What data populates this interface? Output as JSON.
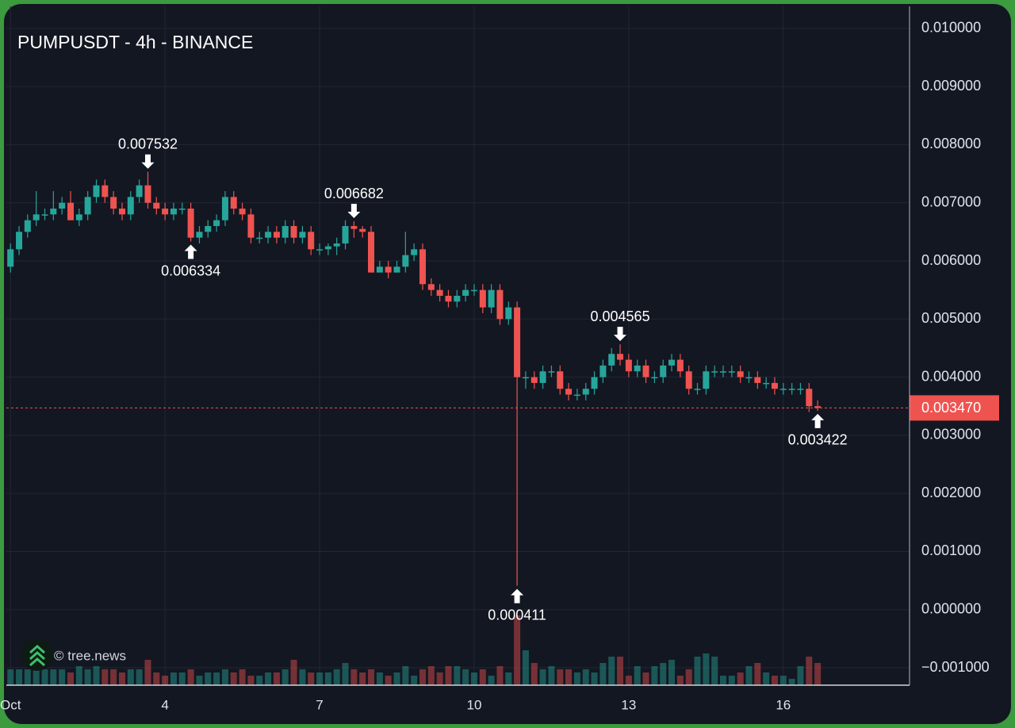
{
  "chart_data": {
    "type": "candlestick",
    "title": "PUMPUSDT - 4h - BINANCE",
    "watermark": "© tree.news",
    "up_color": "#26a69a",
    "down_color": "#ef5350",
    "grid": true,
    "xlim": [
      0.92,
      18.45
    ],
    "xticks": [
      {
        "value": 1,
        "label": "Oct"
      },
      4,
      7,
      10,
      13,
      16
    ],
    "ylim": [
      -0.0013,
      0.01038
    ],
    "yticks": [
      {
        "value": 0.01,
        "label": "0.010000"
      },
      {
        "value": 0.009,
        "label": "0.009000"
      },
      {
        "value": 0.008,
        "label": "0.008000"
      },
      {
        "value": 0.007,
        "label": "0.007000"
      },
      {
        "value": 0.006,
        "label": "0.006000"
      },
      {
        "value": 0.005,
        "label": "0.005000"
      },
      {
        "value": 0.004,
        "label": "0.004000"
      },
      {
        "value": 0.003,
        "label": "0.003000"
      },
      {
        "value": 0.002,
        "label": "0.002000"
      },
      {
        "value": 0.001,
        "label": "0.001000"
      },
      {
        "value": 0,
        "label": "0.000000"
      },
      {
        "value": -0.001,
        "label": "−0.001000"
      }
    ],
    "x": [
      1,
      1.167,
      1.333,
      1.5,
      1.667,
      1.833,
      2,
      2.167,
      2.333,
      2.5,
      2.667,
      2.833,
      3,
      3.167,
      3.333,
      3.5,
      3.667,
      3.833,
      4,
      4.167,
      4.333,
      4.5,
      4.667,
      4.833,
      5,
      5.167,
      5.333,
      5.5,
      5.667,
      5.833,
      6,
      6.167,
      6.333,
      6.5,
      6.667,
      6.833,
      7,
      7.167,
      7.333,
      7.5,
      7.667,
      7.833,
      8,
      8.167,
      8.333,
      8.5,
      8.667,
      8.833,
      9,
      9.167,
      9.333,
      9.5,
      9.667,
      9.833,
      10,
      10.167,
      10.333,
      10.5,
      10.667,
      10.833,
      11,
      11.167,
      11.333,
      11.5,
      11.667,
      11.833,
      12,
      12.167,
      12.333,
      12.5,
      12.667,
      12.833,
      13,
      13.167,
      13.333,
      13.5,
      13.667,
      13.833,
      14,
      14.167,
      14.333,
      14.5,
      14.667,
      14.833,
      15,
      15.167,
      15.333,
      15.5,
      15.667,
      15.833,
      16,
      16.167,
      16.333,
      16.5,
      16.667
    ],
    "open": [
      0.0059,
      0.0062,
      0.0065,
      0.0067,
      0.0068,
      0.0068,
      0.0069,
      0.007,
      0.0067,
      0.0068,
      0.0071,
      0.0073,
      0.0071,
      0.0069,
      0.0068,
      0.0071,
      0.0073,
      0.007,
      0.0069,
      0.0068,
      0.0069,
      0.0069,
      0.0064,
      0.0065,
      0.0066,
      0.0067,
      0.0071,
      0.0069,
      0.0068,
      0.0064,
      0.0064,
      0.0065,
      0.0064,
      0.0066,
      0.0064,
      0.0065,
      0.0062,
      0.0062,
      0.00625,
      0.0063,
      0.0066,
      0.00655,
      0.0065,
      0.0058,
      0.0059,
      0.0058,
      0.0059,
      0.0061,
      0.0062,
      0.0056,
      0.0055,
      0.0054,
      0.0053,
      0.0054,
      0.0055,
      0.0055,
      0.0052,
      0.0055,
      0.005,
      0.0052,
      0.004,
      0.004,
      0.0039,
      0.0041,
      0.0041,
      0.0038,
      0.0037,
      0.0037,
      0.0038,
      0.004,
      0.0042,
      0.0044,
      0.0043,
      0.0041,
      0.0042,
      0.004,
      0.004,
      0.0042,
      0.0043,
      0.0041,
      0.0038,
      0.0038,
      0.0041,
      0.0041,
      0.0041,
      0.0041,
      0.004,
      0.004,
      0.0039,
      0.0039,
      0.0038,
      0.0038,
      0.0038,
      0.0038,
      0.0035
    ],
    "high": [
      0.0063,
      0.0066,
      0.0068,
      0.0072,
      0.0069,
      0.0072,
      0.0071,
      0.0072,
      0.0069,
      0.0072,
      0.0074,
      0.0074,
      0.0072,
      0.007,
      0.0072,
      0.0074,
      0.007532,
      0.0071,
      0.007,
      0.007,
      0.007,
      0.007,
      0.0066,
      0.0067,
      0.0068,
      0.0072,
      0.0072,
      0.007,
      0.0069,
      0.0065,
      0.0066,
      0.0066,
      0.0067,
      0.0067,
      0.0066,
      0.0066,
      0.0063,
      0.0063,
      0.0064,
      0.0067,
      0.006682,
      0.0066,
      0.0066,
      0.006,
      0.006,
      0.006,
      0.0065,
      0.0063,
      0.0063,
      0.0057,
      0.0056,
      0.0055,
      0.0055,
      0.0056,
      0.0056,
      0.0056,
      0.0056,
      0.0056,
      0.0053,
      0.0053,
      0.0041,
      0.0041,
      0.0042,
      0.0042,
      0.0042,
      0.0039,
      0.0038,
      0.0039,
      0.0041,
      0.0043,
      0.0045,
      0.004565,
      0.0044,
      0.0043,
      0.0043,
      0.0041,
      0.0043,
      0.0044,
      0.0044,
      0.0042,
      0.0039,
      0.0042,
      0.0042,
      0.0042,
      0.0042,
      0.0042,
      0.0041,
      0.0041,
      0.004,
      0.004,
      0.0039,
      0.0039,
      0.0039,
      0.0039,
      0.0036
    ],
    "low": [
      0.0058,
      0.0061,
      0.0064,
      0.0066,
      0.0067,
      0.0067,
      0.0068,
      0.0067,
      0.0066,
      0.0067,
      0.007,
      0.007,
      0.0068,
      0.0067,
      0.0067,
      0.007,
      0.0069,
      0.0068,
      0.0067,
      0.0067,
      0.0068,
      0.006334,
      0.0063,
      0.0064,
      0.0065,
      0.0066,
      0.0068,
      0.0067,
      0.0063,
      0.0063,
      0.0063,
      0.0063,
      0.0063,
      0.0063,
      0.0063,
      0.0061,
      0.0061,
      0.0061,
      0.0061,
      0.0062,
      0.0064,
      0.0064,
      0.0058,
      0.0058,
      0.0057,
      0.0058,
      0.0058,
      0.006,
      0.0055,
      0.0054,
      0.0053,
      0.0052,
      0.0052,
      0.0053,
      0.0054,
      0.0051,
      0.0051,
      0.0049,
      0.0049,
      0.000411,
      0.0038,
      0.0038,
      0.0038,
      0.004,
      0.0037,
      0.0036,
      0.0036,
      0.0036,
      0.0037,
      0.0039,
      0.0041,
      0.0042,
      0.004,
      0.004,
      0.0039,
      0.0039,
      0.0039,
      0.0041,
      0.004,
      0.0037,
      0.0037,
      0.0037,
      0.004,
      0.004,
      0.004,
      0.0039,
      0.0039,
      0.0038,
      0.0038,
      0.0037,
      0.0037,
      0.0037,
      0.0037,
      0.0034,
      0.003422
    ],
    "close": [
      0.0062,
      0.0065,
      0.0067,
      0.0068,
      0.0068,
      0.0069,
      0.007,
      0.0067,
      0.0068,
      0.0071,
      0.0073,
      0.0071,
      0.0069,
      0.0068,
      0.0071,
      0.0073,
      0.007,
      0.0069,
      0.0068,
      0.0069,
      0.0069,
      0.0064,
      0.0065,
      0.0066,
      0.0067,
      0.0071,
      0.0069,
      0.0068,
      0.0064,
      0.0064,
      0.0065,
      0.0064,
      0.0066,
      0.0064,
      0.0065,
      0.0062,
      0.0062,
      0.00625,
      0.0063,
      0.0066,
      0.00655,
      0.0065,
      0.0058,
      0.0059,
      0.0058,
      0.0059,
      0.0061,
      0.0062,
      0.0056,
      0.0055,
      0.0054,
      0.0053,
      0.0054,
      0.0055,
      0.0055,
      0.0052,
      0.0055,
      0.005,
      0.0052,
      0.004,
      0.004,
      0.0039,
      0.0041,
      0.0041,
      0.0038,
      0.0037,
      0.0037,
      0.0038,
      0.004,
      0.0042,
      0.0044,
      0.0043,
      0.0041,
      0.0042,
      0.004,
      0.004,
      0.0042,
      0.0043,
      0.0041,
      0.0038,
      0.0038,
      0.0041,
      0.0041,
      0.0041,
      0.0041,
      0.004,
      0.004,
      0.0039,
      0.0039,
      0.0038,
      0.0038,
      0.0038,
      0.0038,
      0.0035,
      0.00347
    ],
    "volume": [
      5,
      5,
      5,
      5,
      5,
      5,
      5,
      4,
      6,
      5,
      6,
      5,
      5,
      4,
      5,
      5,
      8,
      4,
      3,
      4,
      4,
      5,
      3,
      4,
      4,
      5,
      4,
      5,
      3,
      3,
      4,
      4,
      5,
      8,
      5,
      4,
      4,
      4,
      5,
      7,
      5,
      4,
      5,
      4,
      3,
      4,
      6,
      3,
      5,
      6,
      4,
      6,
      6,
      5,
      4,
      5,
      3,
      6,
      4,
      22,
      11,
      7,
      5,
      6,
      5,
      5,
      4,
      5,
      4,
      7,
      9,
      9,
      3,
      6,
      4,
      6,
      7,
      8,
      3,
      5,
      9,
      10,
      9,
      3,
      3,
      4,
      6,
      7,
      4,
      3,
      3,
      2,
      6,
      9,
      7
    ],
    "annotations": [
      {
        "label": "0.007532",
        "x": 3.667,
        "value": 0.007532,
        "position": "above"
      },
      {
        "label": "0.006334",
        "x": 4.5,
        "value": 0.006334,
        "position": "below"
      },
      {
        "label": "0.006682",
        "x": 7.667,
        "value": 0.006682,
        "position": "above"
      },
      {
        "label": "0.000411",
        "x": 10.833,
        "value": 0.000411,
        "position": "below"
      },
      {
        "label": "0.004565",
        "x": 12.833,
        "value": 0.004565,
        "position": "above"
      },
      {
        "label": "0.003422",
        "x": 16.667,
        "value": 0.003422,
        "position": "below"
      }
    ],
    "last_price": {
      "value": 0.00347,
      "label": "0.003470"
    }
  }
}
